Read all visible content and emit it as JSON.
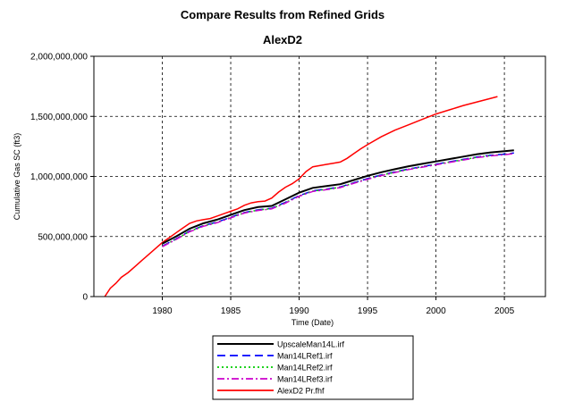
{
  "chart_data": {
    "type": "line",
    "title": "Compare Results from Refined Grids",
    "subtitle": "AlexD2",
    "xlabel": "Time (Date)",
    "ylabel": "Cumulative Gas SC (ft3)",
    "xlim": [
      1975,
      2008
    ],
    "ylim": [
      0,
      2000000000
    ],
    "x_ticks": [
      1980,
      1985,
      1990,
      1995,
      2000,
      2005
    ],
    "x_tick_labels": [
      "1980",
      "1985",
      "1990",
      "1995",
      "2000",
      "2005"
    ],
    "y_ticks": [
      0,
      500000000,
      1000000000,
      1500000000,
      2000000000
    ],
    "y_tick_labels": [
      "0",
      "500,000,000",
      "1,000,000,000",
      "1,500,000,000",
      "2,000,000,000"
    ],
    "grid": true,
    "legend_position": "bottom-center",
    "series": [
      {
        "name": "UpscaleMan14L.irf",
        "color": "#000000",
        "dash": "solid",
        "x": [
          1980.0,
          1981.0,
          1982.0,
          1983.0,
          1984.0,
          1985.0,
          1986.0,
          1987.0,
          1988.0,
          1989.0,
          1990.0,
          1991.0,
          1992.0,
          1993.0,
          1994.0,
          1995.0,
          1996.0,
          1997.0,
          1998.0,
          1999.0,
          2000.0,
          2001.0,
          2002.0,
          2003.0,
          2004.0,
          2005.0,
          2005.7
        ],
        "y": [
          440000000,
          500000000,
          565000000,
          610000000,
          640000000,
          680000000,
          720000000,
          745000000,
          755000000,
          810000000,
          865000000,
          905000000,
          920000000,
          935000000,
          970000000,
          1005000000,
          1035000000,
          1060000000,
          1085000000,
          1105000000,
          1125000000,
          1145000000,
          1165000000,
          1185000000,
          1200000000,
          1210000000,
          1218000000
        ]
      },
      {
        "name": "Man14LRef1.irf",
        "color": "#0000ff",
        "dash": "long",
        "x": [
          1980.0,
          1981.0,
          1982.0,
          1983.0,
          1984.0,
          1985.0,
          1986.0,
          1987.0,
          1988.0,
          1989.0,
          1990.0,
          1991.0,
          1992.0,
          1993.0,
          1994.0,
          1995.0,
          1996.0,
          1997.0,
          1998.0,
          1999.0,
          2000.0,
          2001.0,
          2002.0,
          2003.0,
          2004.0,
          2005.0,
          2005.7
        ],
        "y": [
          420000000,
          480000000,
          545000000,
          590000000,
          620000000,
          660000000,
          700000000,
          722000000,
          735000000,
          785000000,
          840000000,
          880000000,
          895000000,
          912000000,
          948000000,
          982000000,
          1012000000,
          1038000000,
          1062000000,
          1082000000,
          1102000000,
          1122000000,
          1142000000,
          1162000000,
          1176000000,
          1186000000,
          1195000000
        ]
      },
      {
        "name": "Man14LRef2.irf",
        "color": "#00cc00",
        "dash": "dotted",
        "x": [
          1980.0,
          1981.0,
          1982.0,
          1983.0,
          1984.0,
          1985.0,
          1986.0,
          1987.0,
          1988.0,
          1989.0,
          1990.0,
          1991.0,
          1992.0,
          1993.0,
          1994.0,
          1995.0,
          1996.0,
          1997.0,
          1998.0,
          1999.0,
          2000.0,
          2001.0,
          2002.0,
          2003.0,
          2004.0,
          2005.0,
          2005.7
        ],
        "y": [
          418000000,
          478000000,
          543000000,
          588000000,
          618000000,
          658000000,
          698000000,
          720000000,
          733000000,
          782000000,
          838000000,
          878000000,
          893000000,
          910000000,
          946000000,
          980000000,
          1010000000,
          1036000000,
          1060000000,
          1080000000,
          1100000000,
          1120000000,
          1140000000,
          1160000000,
          1174000000,
          1184000000,
          1193000000
        ]
      },
      {
        "name": "Man14LRef3.irf",
        "color": "#cc00cc",
        "dash": "dashdot",
        "x": [
          1980.0,
          1981.0,
          1982.0,
          1983.0,
          1984.0,
          1985.0,
          1986.0,
          1987.0,
          1988.0,
          1989.0,
          1990.0,
          1991.0,
          1992.0,
          1993.0,
          1994.0,
          1995.0,
          1996.0,
          1997.0,
          1998.0,
          1999.0,
          2000.0,
          2001.0,
          2002.0,
          2003.0,
          2004.0,
          2005.0,
          2005.7
        ],
        "y": [
          415000000,
          475000000,
          540000000,
          585000000,
          615000000,
          655000000,
          695000000,
          717000000,
          730000000,
          778000000,
          835000000,
          875000000,
          890000000,
          907000000,
          943000000,
          977000000,
          1007000000,
          1033000000,
          1057000000,
          1077000000,
          1097000000,
          1117000000,
          1137000000,
          1157000000,
          1171000000,
          1181000000,
          1190000000
        ]
      },
      {
        "name": "AlexD2 Pr.fhf",
        "color": "#ff0000",
        "dash": "solid",
        "x": [
          1975.8,
          1976.2,
          1976.6,
          1977.0,
          1977.5,
          1978.0,
          1978.5,
          1979.0,
          1979.5,
          1980.0,
          1980.5,
          1981.0,
          1981.5,
          1982.0,
          1982.5,
          1983.0,
          1983.5,
          1984.0,
          1984.5,
          1985.0,
          1985.5,
          1986.0,
          1986.5,
          1987.0,
          1987.5,
          1988.0,
          1988.5,
          1989.0,
          1989.5,
          1990.0,
          1990.5,
          1991.0,
          1991.5,
          1992.0,
          1992.5,
          1993.0,
          1993.5,
          1994.0,
          1994.5,
          1995.0,
          1996.0,
          1997.0,
          1998.0,
          1999.0,
          2000.0,
          2001.0,
          2002.0,
          2003.0,
          2004.0,
          2004.5
        ],
        "y": [
          0,
          70000000,
          110000000,
          160000000,
          200000000,
          250000000,
          300000000,
          350000000,
          400000000,
          450000000,
          490000000,
          530000000,
          570000000,
          610000000,
          630000000,
          640000000,
          650000000,
          670000000,
          690000000,
          710000000,
          730000000,
          760000000,
          780000000,
          790000000,
          795000000,
          820000000,
          870000000,
          910000000,
          940000000,
          980000000,
          1040000000,
          1080000000,
          1090000000,
          1100000000,
          1110000000,
          1120000000,
          1150000000,
          1190000000,
          1230000000,
          1265000000,
          1330000000,
          1385000000,
          1430000000,
          1475000000,
          1520000000,
          1555000000,
          1590000000,
          1620000000,
          1650000000,
          1665000000
        ]
      }
    ]
  }
}
